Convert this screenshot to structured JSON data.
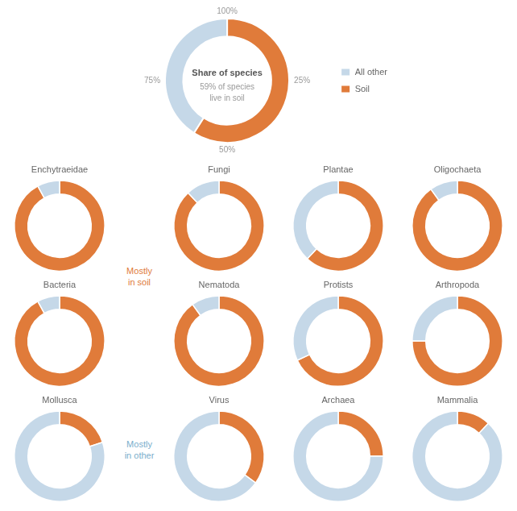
{
  "chart_data": [
    {
      "type": "doughnut",
      "title": "Share of species",
      "subtitle": "59% of species\nlive in soil",
      "categories": [
        "Soil",
        "All other"
      ],
      "values": [
        59,
        41
      ],
      "colors": [
        "#e07b3a",
        "#c5d8e8"
      ],
      "legend": "right",
      "annotations": [
        {
          "text": "100%"
        },
        {
          "text": "25%"
        },
        {
          "text": "50%"
        },
        {
          "text": "75%"
        },
        {
          "text": "Mostly\nin soil",
          "color": "#e07b3a"
        },
        {
          "text": "Mostly\nin other",
          "color": "#7aaecc"
        }
      ]
    },
    {
      "type": "doughnut",
      "title": "Enchytraeidae",
      "categories": [
        "Soil",
        "All other"
      ],
      "values": [
        92,
        8
      ],
      "colors": [
        "#e07b3a",
        "#c5d8e8"
      ]
    },
    {
      "type": "doughnut",
      "title": "Fungi",
      "categories": [
        "Soil",
        "All other"
      ],
      "values": [
        88,
        12
      ],
      "colors": [
        "#e07b3a",
        "#c5d8e8"
      ]
    },
    {
      "type": "doughnut",
      "title": "Plantae",
      "categories": [
        "Soil",
        "All other"
      ],
      "values": [
        62,
        38
      ],
      "colors": [
        "#e07b3a",
        "#c5d8e8"
      ]
    },
    {
      "type": "doughnut",
      "title": "Oligochaeta",
      "categories": [
        "Soil",
        "All other"
      ],
      "values": [
        90,
        10
      ],
      "colors": [
        "#e07b3a",
        "#c5d8e8"
      ]
    },
    {
      "type": "doughnut",
      "title": "Bacteria",
      "categories": [
        "Soil",
        "All other"
      ],
      "values": [
        92,
        8
      ],
      "colors": [
        "#e07b3a",
        "#c5d8e8"
      ]
    },
    {
      "type": "doughnut",
      "title": "Nematoda",
      "categories": [
        "Soil",
        "All other"
      ],
      "values": [
        90,
        10
      ],
      "colors": [
        "#e07b3a",
        "#c5d8e8"
      ]
    },
    {
      "type": "doughnut",
      "title": "Protists",
      "categories": [
        "Soil",
        "All other"
      ],
      "values": [
        68,
        32
      ],
      "colors": [
        "#e07b3a",
        "#c5d8e8"
      ]
    },
    {
      "type": "doughnut",
      "title": "Arthropoda",
      "categories": [
        "Soil",
        "All other"
      ],
      "values": [
        75,
        25
      ],
      "colors": [
        "#e07b3a",
        "#c5d8e8"
      ]
    },
    {
      "type": "doughnut",
      "title": "Mollusca",
      "categories": [
        "Soil",
        "All other"
      ],
      "values": [
        20,
        80
      ],
      "colors": [
        "#e07b3a",
        "#c5d8e8"
      ]
    },
    {
      "type": "doughnut",
      "title": "Virus",
      "categories": [
        "Soil",
        "All other"
      ],
      "values": [
        35,
        65
      ],
      "colors": [
        "#e07b3a",
        "#c5d8e8"
      ]
    },
    {
      "type": "doughnut",
      "title": "Archaea",
      "categories": [
        "Soil",
        "All other"
      ],
      "values": [
        25,
        75
      ],
      "colors": [
        "#e07b3a",
        "#c5d8e8"
      ]
    },
    {
      "type": "doughnut",
      "title": "Mammalia",
      "categories": [
        "Soil",
        "All other"
      ],
      "values": [
        12,
        88
      ],
      "colors": [
        "#e07b3a",
        "#c5d8e8"
      ]
    }
  ]
}
